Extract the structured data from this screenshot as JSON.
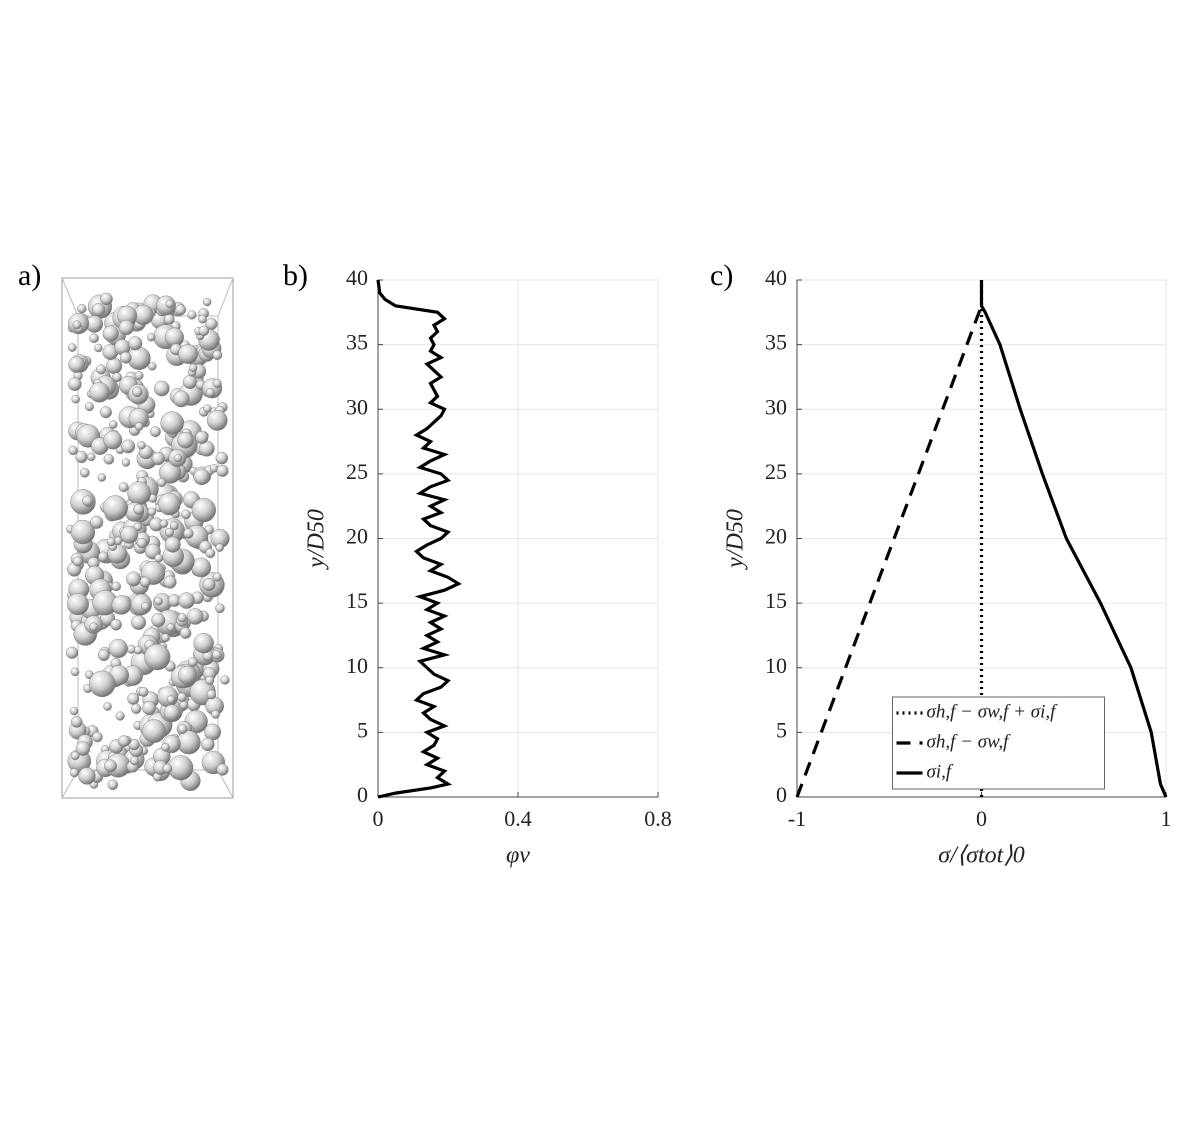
{
  "panel_a": {
    "label": "a)"
  },
  "chart_data": [
    {
      "type": "line",
      "panel_label": "b)",
      "xlabel": "φv",
      "ylabel": "y/D50",
      "xlim": [
        0,
        0.8
      ],
      "xticks": [
        0,
        0.4,
        0.8
      ],
      "ylim": [
        0,
        40
      ],
      "yticks": [
        0,
        5,
        10,
        15,
        20,
        25,
        30,
        35,
        40
      ],
      "grid": true,
      "series": [
        {
          "color": "#000000",
          "dash": "solid",
          "x": [
            0,
            0.05,
            0.15,
            0.2,
            0.17,
            0.19,
            0.14,
            0.17,
            0.13,
            0.16,
            0.17,
            0.14,
            0.19,
            0.15,
            0.13,
            0.16,
            0.11,
            0.13,
            0.18,
            0.2,
            0.16,
            0.14,
            0.12,
            0.19,
            0.13,
            0.17,
            0.14,
            0.18,
            0.15,
            0.19,
            0.14,
            0.17,
            0.12,
            0.19,
            0.23,
            0.2,
            0.15,
            0.18,
            0.13,
            0.11,
            0.14,
            0.18,
            0.2,
            0.15,
            0.13,
            0.18,
            0.15,
            0.19,
            0.12,
            0.15,
            0.2,
            0.18,
            0.12,
            0.15,
            0.19,
            0.13,
            0.15,
            0.11,
            0.14,
            0.16,
            0.18,
            0.19,
            0.15,
            0.17,
            0.16,
            0.15,
            0.18,
            0.16,
            0.14,
            0.18,
            0.15,
            0.16,
            0.15,
            0.17,
            0.16,
            0.19,
            0.17,
            0.05,
            0.02,
            0.005,
            0
          ],
          "y": [
            0,
            0.3,
            0.7,
            1,
            1.5,
            2,
            2.5,
            3,
            3.5,
            4,
            4.5,
            5,
            5.5,
            6,
            6.5,
            7,
            7.5,
            8,
            8.5,
            9,
            9.5,
            10,
            10.5,
            11,
            11.5,
            12,
            12.5,
            13,
            13.5,
            14,
            14.5,
            15,
            15.5,
            16,
            16.5,
            17,
            17.5,
            18,
            18.5,
            19,
            19.5,
            20,
            20.5,
            21,
            21.5,
            22,
            22.5,
            23,
            23.5,
            24,
            24.5,
            25,
            25.5,
            26,
            26.5,
            27,
            27.5,
            28,
            28.5,
            29,
            29.5,
            30,
            30.5,
            31,
            31.5,
            32,
            32.5,
            33,
            33.5,
            34,
            34.5,
            35,
            35.5,
            36,
            36.5,
            37,
            37.5,
            38,
            38.5,
            39,
            40
          ]
        }
      ]
    },
    {
      "type": "line",
      "panel_label": "c)",
      "xlabel": "σ/⟨σtot⟩0",
      "ylabel": "y/D50",
      "xlim": [
        -1,
        1
      ],
      "xticks": [
        -1,
        0,
        1
      ],
      "ylim": [
        0,
        40
      ],
      "yticks": [
        0,
        5,
        10,
        15,
        20,
        25,
        30,
        35,
        40
      ],
      "grid": true,
      "legend": "lower center",
      "series": [
        {
          "name": "σh,f − σw,f + σi,f",
          "color": "#000000",
          "dash": "dotted",
          "x": [
            0,
            0
          ],
          "y": [
            0,
            40
          ]
        },
        {
          "name": "σh,f − σw,f",
          "color": "#000000",
          "dash": "dashed",
          "x": [
            -1,
            0
          ],
          "y": [
            0,
            38
          ]
        },
        {
          "name": "σi,f",
          "color": "#000000",
          "dash": "solid",
          "x": [
            1,
            0.97,
            0.92,
            0.81,
            0.645,
            0.46,
            0.33,
            0.21,
            0.1,
            0.02,
            0,
            0
          ],
          "y": [
            0,
            1,
            5,
            10,
            15,
            20,
            25,
            30,
            35,
            37.5,
            38,
            40
          ]
        }
      ]
    }
  ]
}
